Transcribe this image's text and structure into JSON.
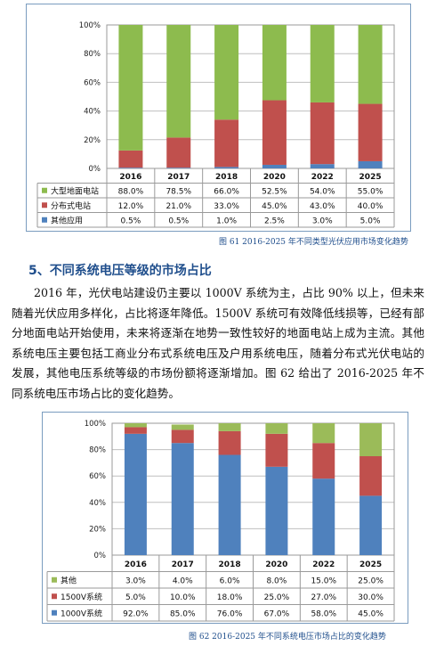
{
  "chart_data": [
    {
      "type": "bar",
      "stacked": true,
      "normalized": true,
      "categories": [
        "2016",
        "2017",
        "2018",
        "2020",
        "2022",
        "2025"
      ],
      "series": [
        {
          "name": "大型地面电站",
          "color": "#8dbb4e",
          "values": [
            88.0,
            78.5,
            66.0,
            52.5,
            54.0,
            55.0
          ],
          "labels": [
            "88.0%",
            "78.5%",
            "66.0%",
            "52.5%",
            "54.0%",
            "55.0%"
          ]
        },
        {
          "name": "分布式电站",
          "color": "#c0504d",
          "values": [
            12.0,
            21.0,
            33.0,
            45.0,
            43.0,
            40.0
          ],
          "labels": [
            "12.0%",
            "21.0%",
            "33.0%",
            "45.0%",
            "43.0%",
            "40.0%"
          ]
        },
        {
          "name": "其他应用",
          "color": "#4f81bd",
          "values": [
            0.5,
            0.5,
            1.0,
            2.5,
            3.0,
            5.0
          ],
          "labels": [
            "0.5%",
            "0.5%",
            "1.0%",
            "2.5%",
            "3.0%",
            "5.0%"
          ]
        }
      ],
      "yticks": [
        "0%",
        "20%",
        "40%",
        "60%",
        "80%",
        "100%"
      ],
      "ylim": [
        0,
        100
      ],
      "grid": true,
      "legend": "data-table-below",
      "title": "图 61 2016-2025 年不同类型光伏应用市场变化趋势"
    },
    {
      "type": "bar",
      "stacked": true,
      "normalized": true,
      "categories": [
        "2016",
        "2017",
        "2018",
        "2020",
        "2022",
        "2025"
      ],
      "series": [
        {
          "name": "其他",
          "color": "#9bbb59",
          "values": [
            3.0,
            4.0,
            6.0,
            8.0,
            15.0,
            25.0
          ],
          "labels": [
            "3.0%",
            "4.0%",
            "6.0%",
            "8.0%",
            "15.0%",
            "25.0%"
          ]
        },
        {
          "name": "1500V系统",
          "color": "#c0504d",
          "values": [
            5.0,
            10.0,
            18.0,
            25.0,
            27.0,
            30.0
          ],
          "labels": [
            "5.0%",
            "10.0%",
            "18.0%",
            "25.0%",
            "27.0%",
            "30.0%"
          ]
        },
        {
          "name": "1000V系统",
          "color": "#4f81bd",
          "values": [
            92.0,
            85.0,
            76.0,
            67.0,
            58.0,
            45.0
          ],
          "labels": [
            "92.0%",
            "85.0%",
            "76.0%",
            "67.0%",
            "58.0%",
            "45.0%"
          ]
        }
      ],
      "yticks": [
        "0%",
        "20%",
        "40%",
        "60%",
        "80%",
        "100%"
      ],
      "ylim": [
        0,
        100
      ],
      "grid": true,
      "legend": "data-table-below",
      "title": "图 62 2016-2025 年不同系统电压市场占比的变化趋势"
    }
  ],
  "section": {
    "heading": "5、不同系统电压等级的市场占比",
    "paragraph": "2016 年，光伏电站建设仍主要以 1000V 系统为主，占比 90% 以上，但未来随着光伏应用多样化，占比将逐年降低。1500V 系统可有效降低线损等，已经有部分地面电站开始使用，未来将逐渐在地势一致性较好的地面电站上成为主流。其他系统电压主要包括工商业分布式系统电压及户用系统电压，随着分布式光伏电站的发展，其他电压系统等级的市场份额将逐渐增加。图 62 给出了 2016-2025 年不同系统电压市场占比的变化趋势。"
  }
}
